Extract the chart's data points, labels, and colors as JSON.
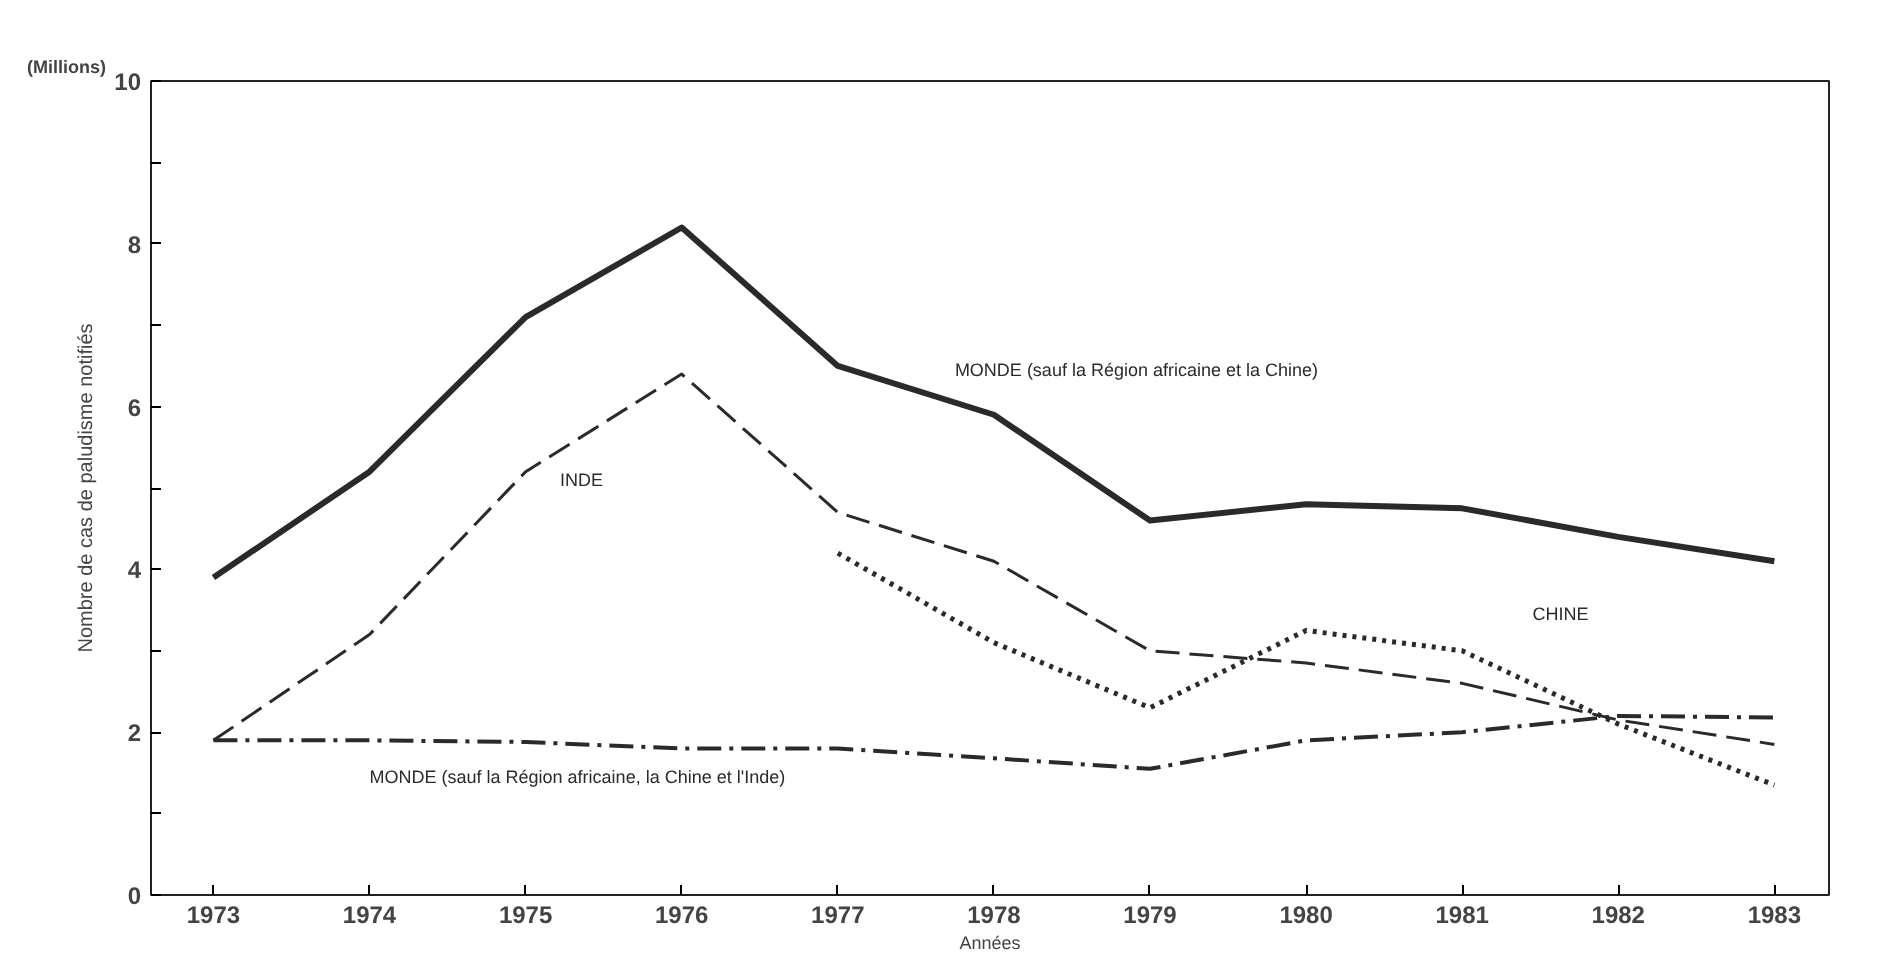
{
  "chart_data": {
    "type": "line",
    "xlabel": "Années",
    "ylabel": "Nombre de cas de paludisme notifiés",
    "annotations": [
      "(Millions)"
    ],
    "x": [
      1973,
      1974,
      1975,
      1976,
      1977,
      1978,
      1979,
      1980,
      1981,
      1982,
      1983
    ],
    "series": [
      {
        "name": "MONDE (sauf la Région africaine et la Chine)",
        "color": "#2a2a2a",
        "line_style": "solid",
        "values": [
          3.9,
          5.2,
          7.1,
          8.2,
          6.5,
          5.9,
          4.6,
          4.8,
          4.75,
          4.4,
          4.1
        ]
      },
      {
        "name": "INDE",
        "color": "#2a2a2a",
        "line_style": "dashed",
        "values": [
          1.9,
          3.2,
          5.2,
          6.4,
          4.7,
          4.1,
          3.0,
          2.85,
          2.6,
          2.15,
          1.85
        ]
      },
      {
        "name": "CHINE",
        "color": "#2a2a2a",
        "line_style": "dotted",
        "values": [
          null,
          null,
          null,
          null,
          4.2,
          3.1,
          2.3,
          3.25,
          3.0,
          2.1,
          1.35
        ]
      },
      {
        "name": "MONDE (sauf la Région africaine, la Chine et l'Inde)",
        "color": "#2a2a2a",
        "line_style": "dashdot",
        "values": [
          1.9,
          1.9,
          1.88,
          1.8,
          1.8,
          1.68,
          1.55,
          1.9,
          2.0,
          2.2,
          2.18
        ]
      }
    ],
    "xlim": [
      1972.6,
      1983.35
    ],
    "ylim": [
      0,
      10
    ],
    "xticks": [
      1973,
      1974,
      1975,
      1976,
      1977,
      1978,
      1979,
      1980,
      1981,
      1982,
      1983
    ],
    "yticks": [
      0,
      {
        "value": 1,
        "label": null
      },
      2,
      {
        "value": 3,
        "label": null
      },
      4,
      {
        "value": 5,
        "label": null
      },
      6,
      {
        "value": 7,
        "label": null
      },
      8,
      {
        "value": 9,
        "label": null
      },
      10
    ],
    "grid": false,
    "legend": false,
    "marker": "none"
  }
}
